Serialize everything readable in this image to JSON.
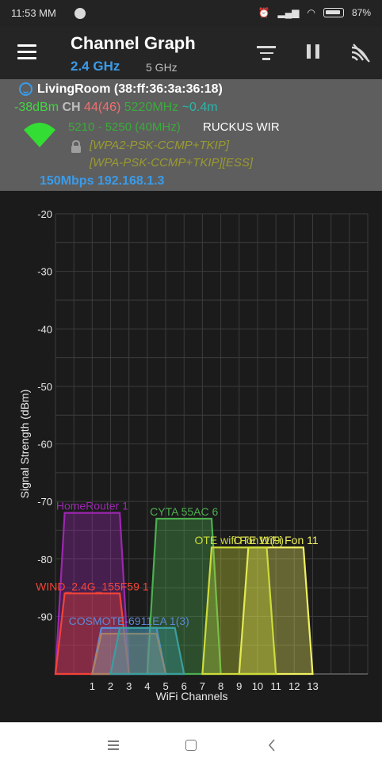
{
  "status_bar": {
    "time": "11:53 MM",
    "battery": "87%"
  },
  "app_bar": {
    "title": "Channel Graph",
    "band_selected": "2.4 GHz",
    "band_other": "5 GHz",
    "icons": [
      "menu-icon",
      "filter-icon",
      "pause-icon",
      "wifi-scan-icon"
    ]
  },
  "connection": {
    "ssid_line": "LivingRoom (38:ff:36:3a:36:18)",
    "signal": "-38dBm",
    "ch_label": "CH",
    "channel": "44(46)",
    "frequency": "5220MHz",
    "distance": "~0.4m",
    "freq_range": "5210 - 5250 (40MHz)",
    "vendor": "RUCKUS WIR",
    "capabilities_1": "[WPA2-PSK-CCMP+TKIP]",
    "capabilities_2": "[WPA-PSK-CCMP+TKIP][ESS]",
    "speed_ip": "150Mbps 192.168.1.3"
  },
  "colors": {
    "blue": "#3b9be8",
    "green_signal": "#44d544",
    "red_channel": "#f26f6f",
    "cyan_distance": "#2bb5a8"
  },
  "chart_data": {
    "type": "area",
    "xlabel": "WiFi Channels",
    "ylabel": "Signal Strength (dBm)",
    "ylim": [
      -100,
      -20
    ],
    "xlim": [
      -1,
      16
    ],
    "y_ticks": [
      "-20",
      "-30",
      "-40",
      "-50",
      "-60",
      "-70",
      "-80",
      "-90"
    ],
    "x_ticks": [
      "1",
      "2",
      "3",
      "4",
      "5",
      "6",
      "7",
      "8",
      "9",
      "10",
      "11",
      "12",
      "13"
    ],
    "grid": true,
    "series": [
      {
        "name": "HomeRouter 1",
        "label": "HomeRouter 1",
        "center": 1,
        "level": -72,
        "color": "#9c27b0"
      },
      {
        "name": "CYTA 55AC 6",
        "label": "CYTA 55AC 6",
        "center": 6,
        "level": -73,
        "color": "#4caf50"
      },
      {
        "name": "OTE WiFi Fon 11",
        "label": "OTE WiFi Fon 11",
        "center": 11,
        "level": -78,
        "color": "#f0f060"
      },
      {
        "name": "WiFi Fon 9",
        "label": "OTE wifi Fon11(9)",
        "center": 9,
        "level": -78,
        "color": "#cddc39"
      },
      {
        "name": "WIND_2.4G_155F59 1",
        "label": "WIND_2.4G_155F59 1",
        "center": 1,
        "level": -86,
        "color": "#f44336"
      },
      {
        "name": "COSMOTE-6911EA 1(3)",
        "label": "COSMOTE-6911EA 1(3)",
        "center": 3,
        "level": -92,
        "color": "#5c8ad6"
      },
      {
        "name": "hidden 3",
        "label": "",
        "center": 3,
        "level": -93,
        "color": "#b08060"
      },
      {
        "name": "hidden 4",
        "label": "",
        "center": 4,
        "level": -92,
        "color": "#3a9fa0"
      }
    ]
  }
}
